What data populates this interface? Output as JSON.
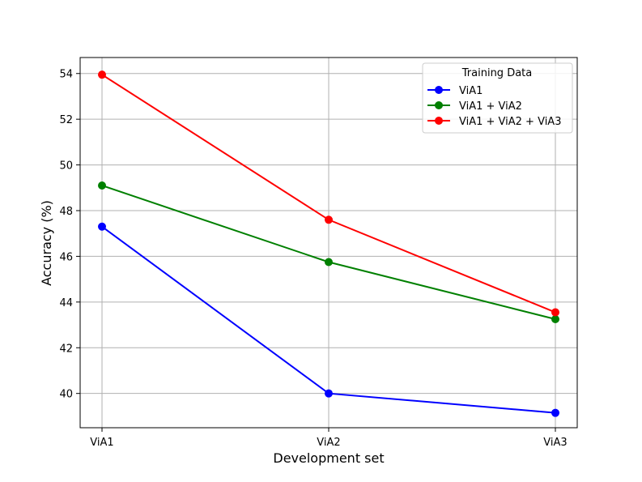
{
  "chart_data": {
    "type": "line",
    "title": "",
    "xlabel": "Development set",
    "ylabel": "Accuracy (%)",
    "categories": [
      "ViA1",
      "ViA2",
      "ViA3"
    ],
    "ylim": [
      38.5,
      54.7
    ],
    "yticks": [
      40,
      42,
      44,
      46,
      48,
      50,
      52,
      54
    ],
    "grid": true,
    "legend": {
      "title": "Training Data",
      "placement": "top-right"
    },
    "series": [
      {
        "name": "ViA1",
        "color": "#0000ff",
        "values": [
          47.3,
          40.0,
          39.15
        ]
      },
      {
        "name": "ViA1 + ViA2",
        "color": "#008000",
        "values": [
          49.1,
          45.75,
          43.25
        ]
      },
      {
        "name": "ViA1 + ViA2 + ViA3",
        "color": "#ff0000",
        "values": [
          53.95,
          47.6,
          43.55
        ]
      }
    ]
  }
}
